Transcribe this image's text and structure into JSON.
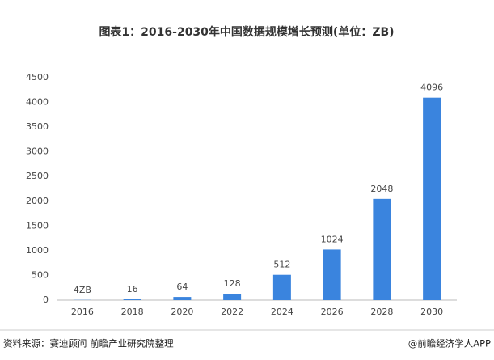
{
  "chart_data": {
    "type": "bar",
    "title": "图表1：2016-2030年中国数据规模增长预测(单位：ZB)",
    "categories": [
      "2016",
      "2018",
      "2020",
      "2022",
      "2024",
      "2026",
      "2028",
      "2030"
    ],
    "values": [
      4,
      16,
      64,
      128,
      512,
      1024,
      2048,
      4096
    ],
    "value_labels": [
      "4ZB",
      "16",
      "64",
      "128",
      "512",
      "1024",
      "2048",
      "4096"
    ],
    "color": "#3a84de",
    "ylim": [
      0,
      4500
    ],
    "yticks": [
      0,
      500,
      1000,
      1500,
      2000,
      2500,
      3000,
      3500,
      4000,
      4500
    ],
    "grid": false
  },
  "footer": {
    "source": "资料来源：赛迪顾问 前瞻产业研究院整理",
    "brand": "@前瞻经济学人APP"
  }
}
